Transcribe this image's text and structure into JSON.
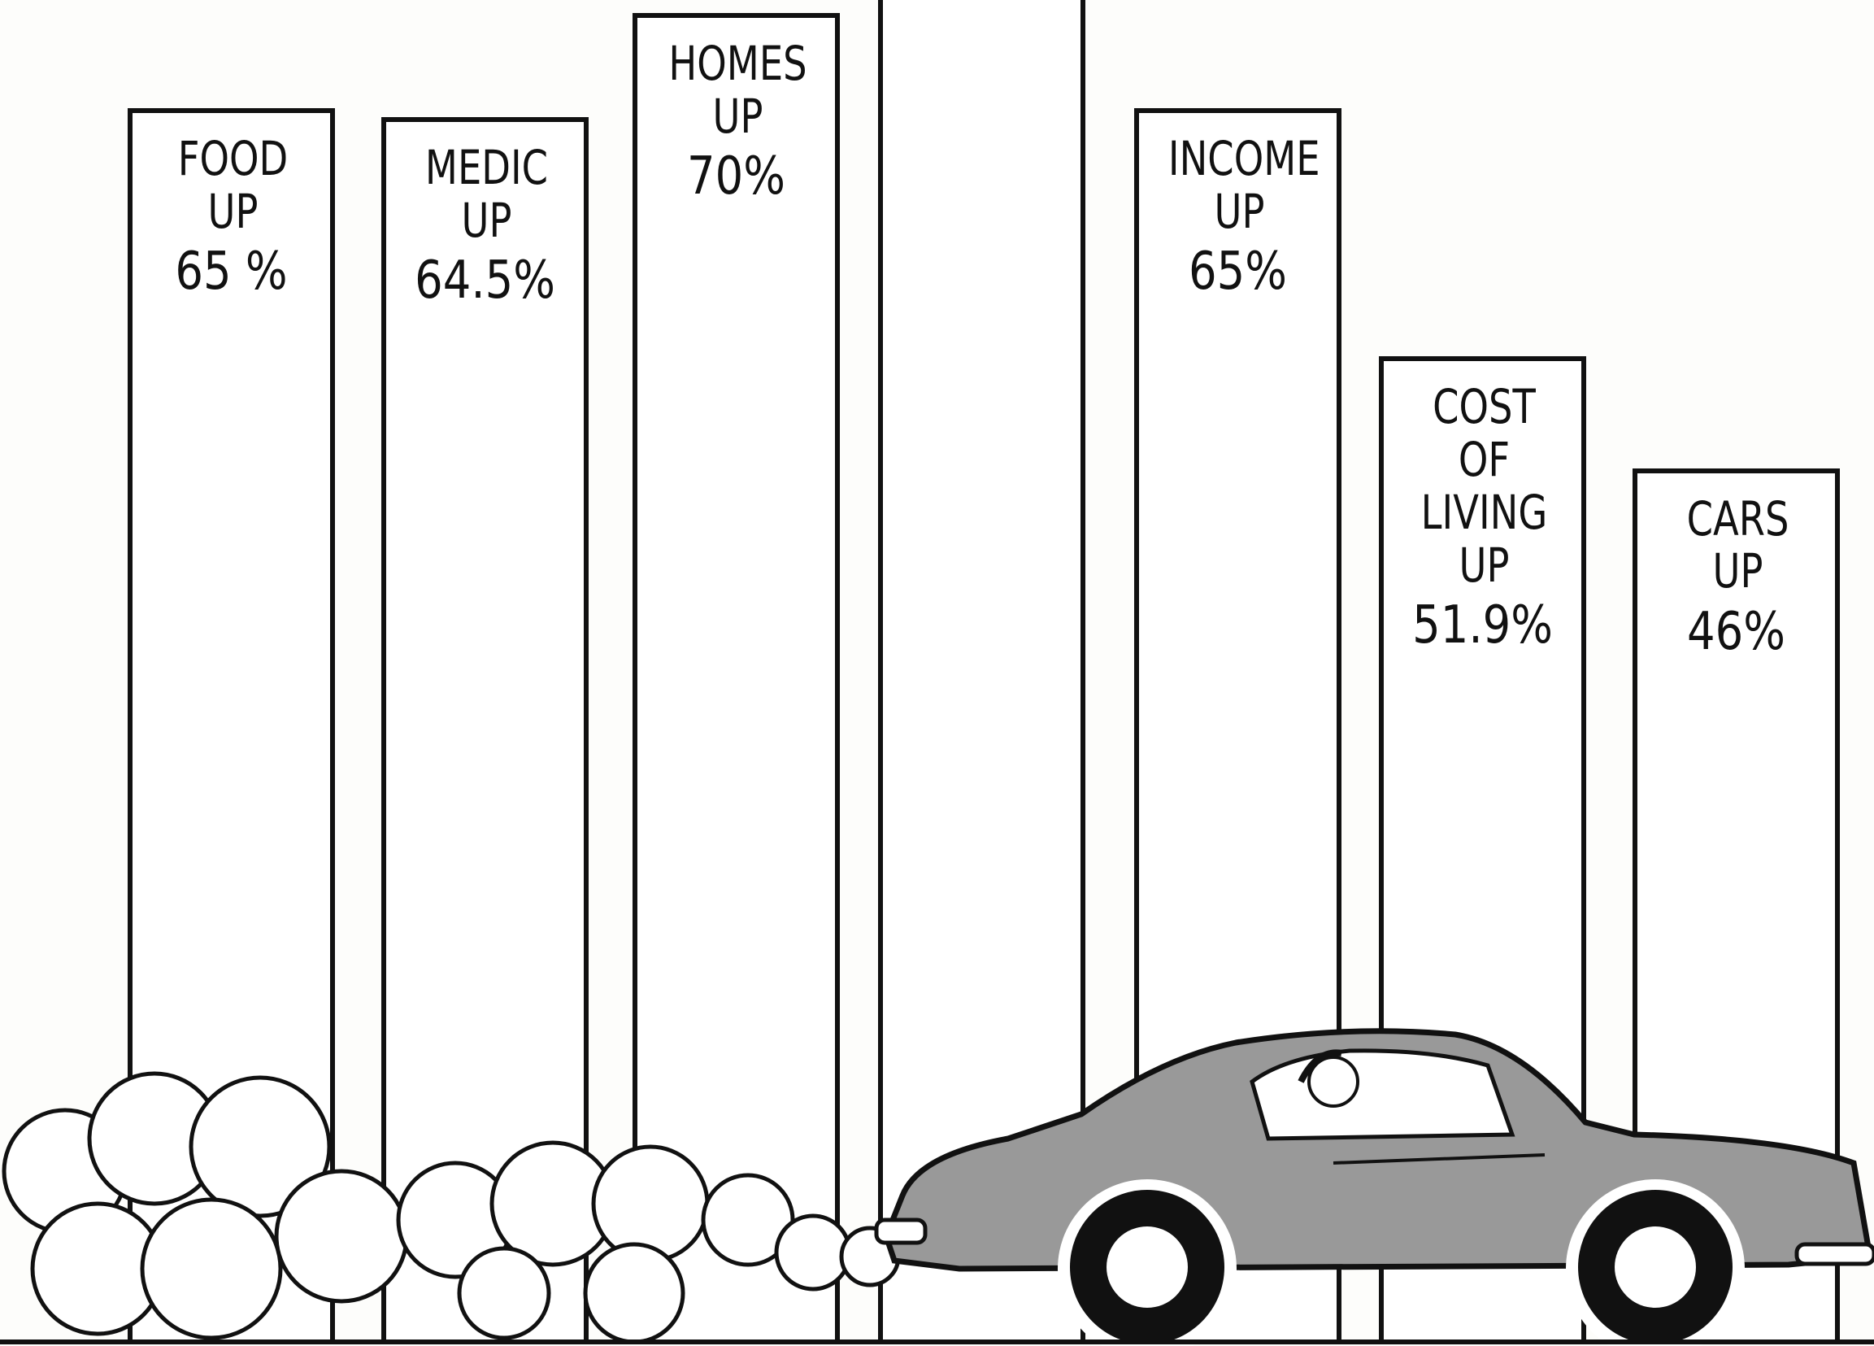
{
  "chart_data": {
    "type": "bar",
    "categories": [
      "FOOD UP",
      "MEDIC UP",
      "HOMES UP",
      null,
      "INCOME UP",
      "COST OF LIVING UP",
      "CARS UP"
    ],
    "values": [
      65,
      64.5,
      70,
      null,
      65,
      51.9,
      46
    ],
    "value_labels": [
      "65 %",
      "64.5%",
      "70%",
      null,
      "65%",
      "51.9%",
      "46%"
    ],
    "color": "#ffffff"
  }
}
